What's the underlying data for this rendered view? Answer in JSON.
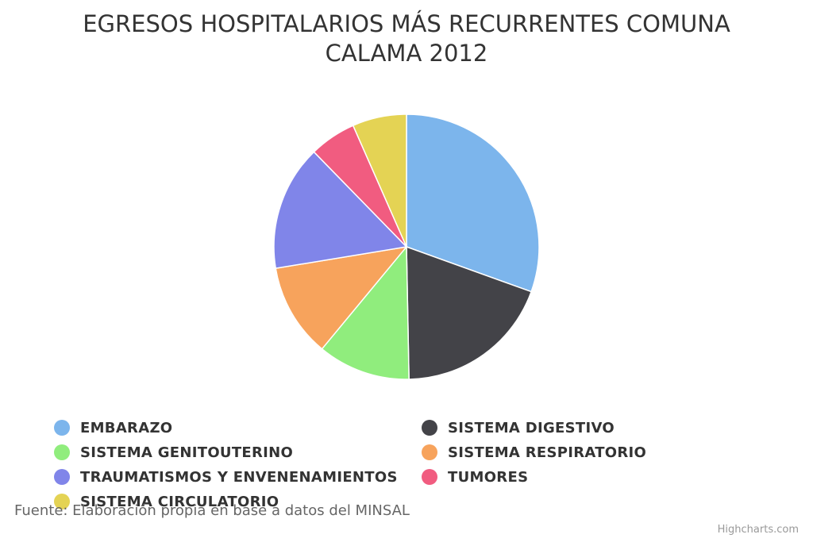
{
  "chart_data": {
    "type": "pie",
    "title": "EGRESOS HOSPITALARIOS MÁS RECURRENTES COMUNA CALAMA 2012",
    "title_lines": [
      "EGRESOS HOSPITALARIOS MÁS RECURRENTES COMUNA",
      "CALAMA 2012"
    ],
    "unit": "%",
    "slices": [
      {
        "name": "EMBARAZO",
        "value": 30.5,
        "color": "#7cb5ec"
      },
      {
        "name": "SISTEMA DIGESTIVO",
        "value": 19.2,
        "color": "#434348"
      },
      {
        "name": "SISTEMA GENITOUTERINO",
        "value": 11.3,
        "color": "#90ed7d"
      },
      {
        "name": "SISTEMA RESPIRATORIO",
        "value": 11.4,
        "color": "#f7a35c"
      },
      {
        "name": "TRAUMATISMOS Y ENVENENAMIENTOS",
        "value": 15.3,
        "color": "#8085e9"
      },
      {
        "name": "TUMORES",
        "value": 5.7,
        "color": "#f15c80"
      },
      {
        "name": "SISTEMA CIRCULATORIO",
        "value": 6.6,
        "color": "#e4d354"
      }
    ],
    "legend_position": "bottom",
    "start_angle": "12 o'clock, clockwise"
  },
  "source_note": "Fuente: Elaboración propia en base a datos del MINSAL",
  "credits": "Highcharts.com"
}
